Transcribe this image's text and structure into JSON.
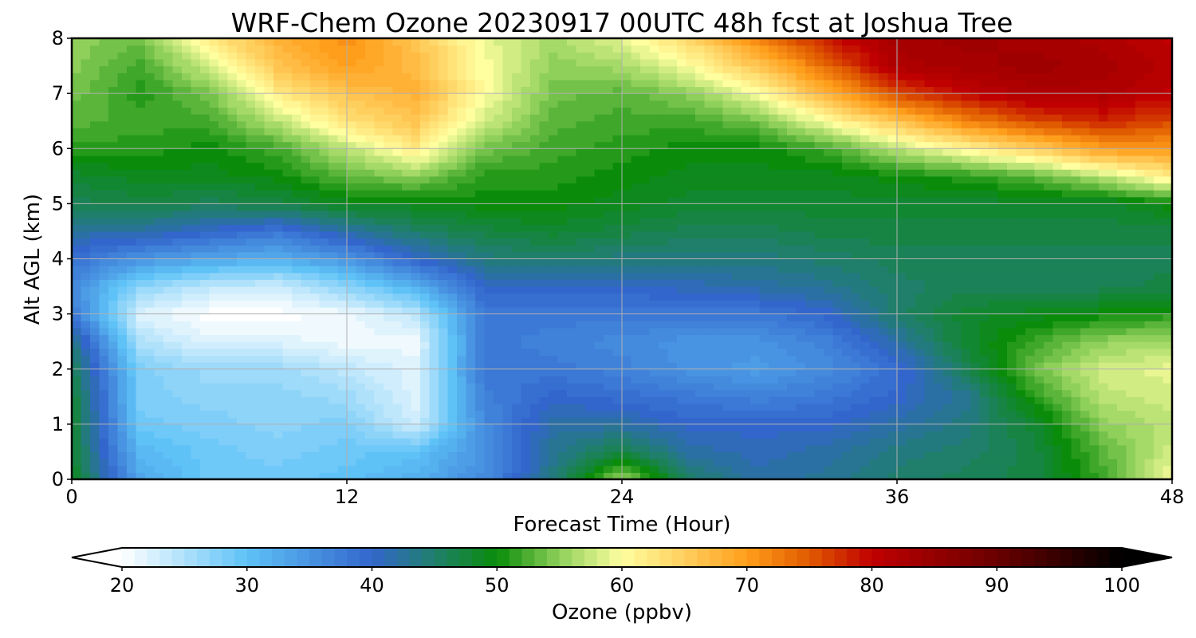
{
  "chart_data": {
    "type": "heatmap",
    "title": "WRF-Chem Ozone  20230917 00UTC 48h fcst at Joshua Tree",
    "xlabel": "Forecast Time (Hour)",
    "ylabel": "Alt AGL (km)",
    "xlim": [
      0,
      48
    ],
    "ylim": [
      0,
      8
    ],
    "xticks": [
      0,
      12,
      24,
      36,
      48
    ],
    "yticks": [
      0,
      1,
      2,
      3,
      4,
      5,
      6,
      7,
      8
    ],
    "grid": true,
    "x": [
      0,
      3,
      6,
      9,
      12,
      15,
      18,
      21,
      24,
      27,
      30,
      33,
      36,
      39,
      42,
      45,
      48
    ],
    "y": [
      0,
      0.5,
      1,
      1.5,
      2,
      2.5,
      3,
      3.5,
      4,
      4.5,
      5,
      5.5,
      6,
      6.5,
      7,
      7.5,
      8
    ],
    "values": [
      [
        49,
        33,
        29,
        29,
        30,
        32,
        36,
        44,
        56,
        45,
        42,
        43,
        45,
        46,
        47,
        52,
        60
      ],
      [
        48,
        31,
        29,
        28,
        29,
        30,
        35,
        43,
        47,
        42,
        41,
        42,
        44,
        45,
        47,
        53,
        58
      ],
      [
        48,
        29,
        28,
        27,
        28,
        23,
        36,
        42,
        42,
        40,
        40,
        40,
        42,
        44,
        48,
        55,
        57
      ],
      [
        48,
        28,
        27,
        27,
        26,
        22,
        37,
        40,
        39,
        38,
        37,
        38,
        40,
        43,
        51,
        57,
        58
      ],
      [
        46,
        28,
        26,
        26,
        24,
        22,
        38,
        38,
        37,
        35,
        34,
        36,
        39,
        46,
        54,
        58,
        59
      ],
      [
        44,
        25,
        22,
        22,
        21,
        21,
        38,
        37,
        36,
        35,
        35,
        37,
        42,
        48,
        52,
        55,
        56
      ],
      [
        38,
        22,
        20,
        20,
        21,
        24,
        38,
        38,
        38,
        38,
        38,
        40,
        45,
        48,
        49,
        50,
        51
      ],
      [
        36,
        27,
        24,
        23,
        27,
        32,
        40,
        40,
        40,
        41,
        42,
        43,
        45,
        46,
        46,
        46,
        47
      ],
      [
        39,
        35,
        33,
        32,
        35,
        40,
        44,
        45,
        44,
        44,
        44,
        45,
        46,
        46,
        46,
        46,
        46
      ],
      [
        42,
        42,
        40,
        38,
        42,
        45,
        47,
        48,
        47,
        46,
        46,
        47,
        47,
        47,
        47,
        47,
        47
      ],
      [
        46,
        47,
        46,
        47,
        49,
        49,
        50,
        50,
        49,
        48,
        48,
        48,
        48,
        48,
        48,
        48,
        50
      ],
      [
        48,
        49,
        49,
        50,
        53,
        55,
        51,
        51,
        50,
        49,
        49,
        49,
        50,
        51,
        53,
        57,
        62
      ],
      [
        51,
        51,
        50,
        52,
        57,
        62,
        54,
        52,
        51,
        50,
        50,
        52,
        57,
        61,
        65,
        70,
        70
      ],
      [
        53,
        52,
        52,
        57,
        63,
        66,
        58,
        53,
        52,
        52,
        54,
        60,
        66,
        72,
        76,
        78,
        76
      ],
      [
        54,
        51,
        54,
        62,
        66,
        68,
        60,
        54,
        53,
        55,
        60,
        68,
        76,
        80,
        82,
        82,
        80
      ],
      [
        55,
        52,
        58,
        66,
        70,
        67,
        60,
        55,
        56,
        60,
        66,
        74,
        82,
        83,
        84,
        83,
        81
      ],
      [
        55,
        54,
        62,
        68,
        71,
        66,
        59,
        56,
        59,
        64,
        72,
        79,
        83,
        84,
        83,
        82,
        80
      ]
    ],
    "colorbar": {
      "label": "Ozone  (ppbv)",
      "min": 20,
      "max": 100,
      "ticks": [
        20,
        30,
        40,
        50,
        60,
        70,
        80,
        90,
        100
      ],
      "extend": "both",
      "stops": [
        {
          "v": 20,
          "c": "#ffffff"
        },
        {
          "v": 30,
          "c": "#5ec2f7"
        },
        {
          "v": 40,
          "c": "#3366cc"
        },
        {
          "v": 45,
          "c": "#1f7f6b"
        },
        {
          "v": 50,
          "c": "#0a8c0a"
        },
        {
          "v": 55,
          "c": "#8fd05a"
        },
        {
          "v": 60,
          "c": "#ffffa0"
        },
        {
          "v": 70,
          "c": "#ff9e1b"
        },
        {
          "v": 75,
          "c": "#e05a00"
        },
        {
          "v": 80,
          "c": "#c00000"
        },
        {
          "v": 90,
          "c": "#6a0000"
        },
        {
          "v": 100,
          "c": "#000000"
        }
      ]
    }
  }
}
